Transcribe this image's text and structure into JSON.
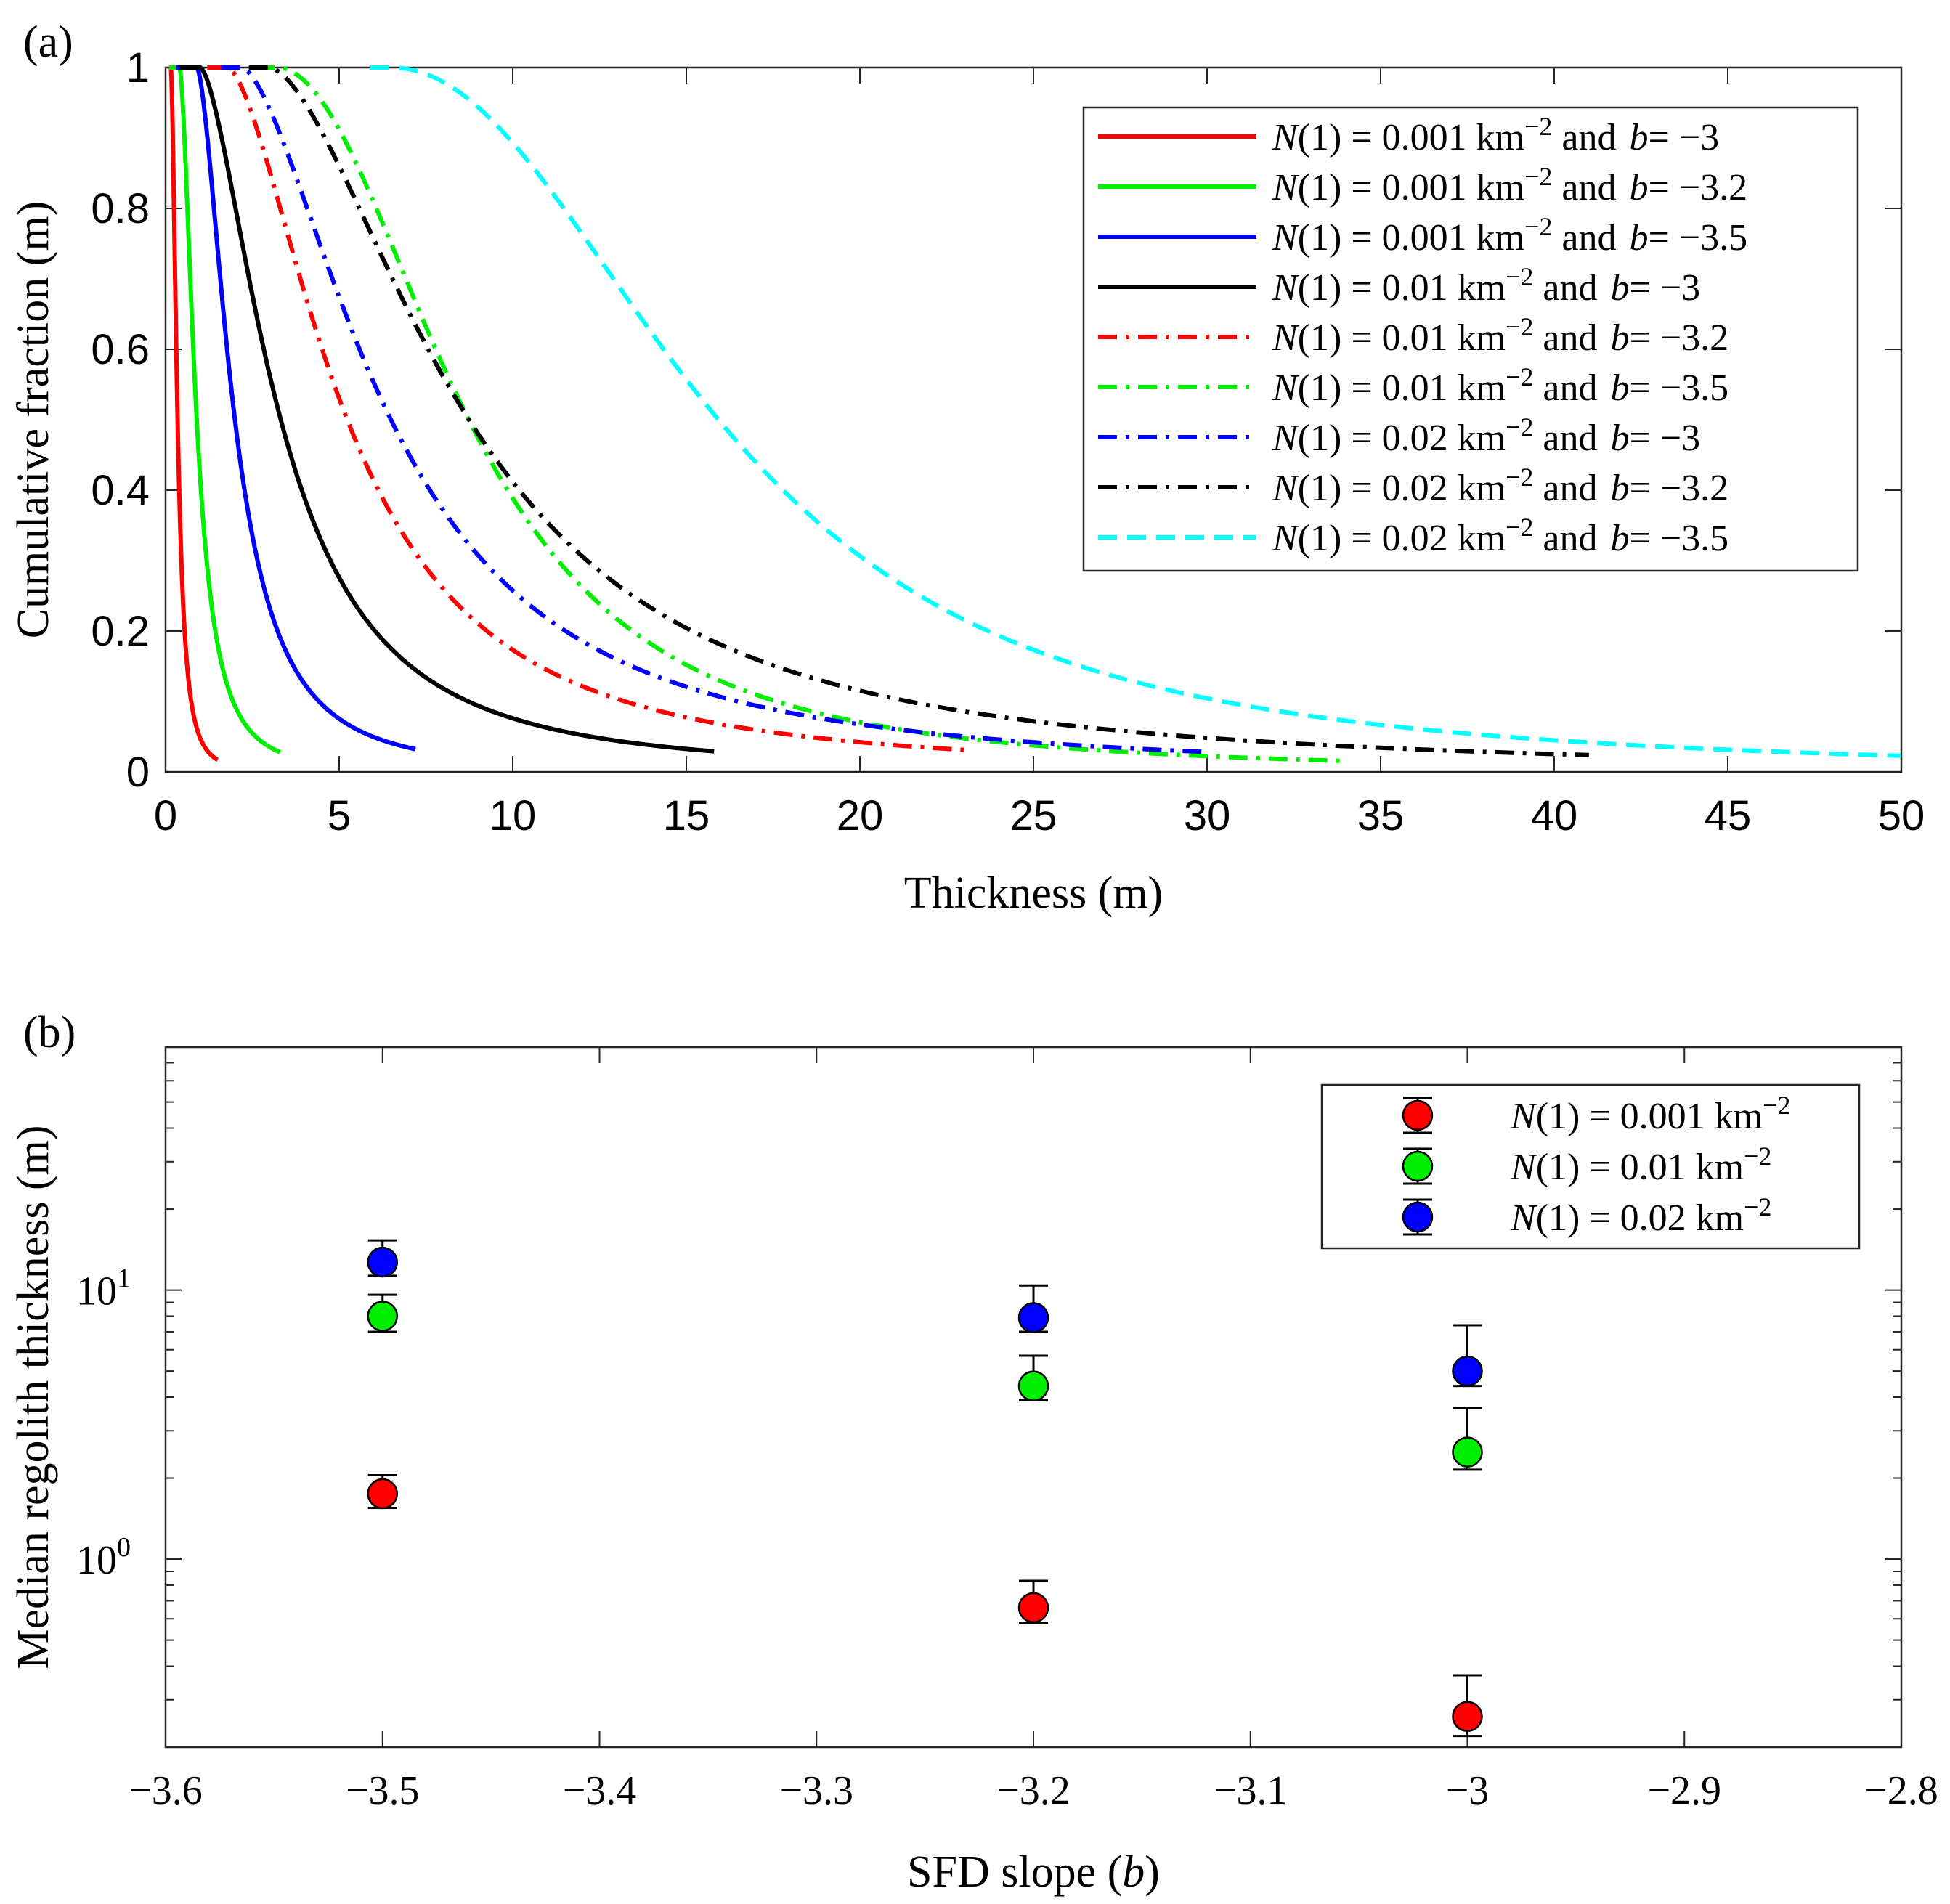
{
  "chart_data": [
    {
      "panel_label": "(a)",
      "type": "line",
      "xlabel": "Thickness (m)",
      "ylabel": "Cumulative fraction (m)",
      "xlim": [
        0,
        50
      ],
      "ylim": [
        0,
        1
      ],
      "xticks": [
        "0",
        "5",
        "10",
        "15",
        "20",
        "25",
        "30",
        "35",
        "40",
        "45",
        "50"
      ],
      "yticks": [
        "0",
        "0.2",
        "0.4",
        "0.6",
        "0.8",
        "1"
      ],
      "legend_position": "top-right",
      "series": [
        {
          "name_n": "0.001",
          "name_b": "−3",
          "color": "#ff0000",
          "style": "solid",
          "onset": 0.15,
          "scale": 0.12,
          "shape": 1.7,
          "end": 1.5
        },
        {
          "name_n": "0.001",
          "name_b": "−3.2",
          "color": "#00ee00",
          "style": "solid",
          "onset": 0.4,
          "scale": 0.3,
          "shape": 1.65,
          "end": 3.3
        },
        {
          "name_n": "0.001",
          "name_b": "−3.5",
          "color": "#0000ff",
          "style": "solid",
          "onset": 0.9,
          "scale": 0.65,
          "shape": 1.6,
          "end": 7.2
        },
        {
          "name_n": "0.01",
          "name_b": "−3",
          "color": "#000000",
          "style": "solid",
          "onset": 1.0,
          "scale": 1.35,
          "shape": 1.55,
          "end": 15.8
        },
        {
          "name_n": "0.01",
          "name_b": "−3.2",
          "color": "#ff0000",
          "style": "dashdot",
          "onset": 1.8,
          "scale": 2.0,
          "shape": 1.55,
          "end": 23.0
        },
        {
          "name_n": "0.01",
          "name_b": "−3.5",
          "color": "#00ee00",
          "style": "dashdot",
          "onset": 3.2,
          "scale": 3.6,
          "shape": 1.95,
          "end": 34.0
        },
        {
          "name_n": "0.02",
          "name_b": "−3",
          "color": "#0000ff",
          "style": "dashdot",
          "onset": 2.2,
          "scale": 2.5,
          "shape": 1.55,
          "end": 30.0
        },
        {
          "name_n": "0.02",
          "name_b": "−3.2",
          "color": "#000000",
          "style": "dashdot",
          "onset": 3.0,
          "scale": 3.4,
          "shape": 1.6,
          "end": 41.0
        },
        {
          "name_n": "0.02",
          "name_b": "−3.5",
          "color": "#00ffff",
          "style": "dashed",
          "onset": 6.5,
          "scale": 6.2,
          "shape": 2.0,
          "end": 50.0
        }
      ],
      "legend_prefix": "N(1) = ",
      "legend_unit": "km",
      "legend_exp": "−2",
      "legend_and": "and",
      "legend_b": "b= "
    },
    {
      "panel_label": "(b)",
      "type": "scatter",
      "xlabel_prefix": "SFD slope (",
      "xlabel_var": "b",
      "xlabel_suffix": ")",
      "ylabel": "Median regolith thickness (m)",
      "xlim": [
        -3.6,
        -2.8
      ],
      "ylog": true,
      "ylim": [
        0.2,
        80
      ],
      "xticks": [
        "−3.6",
        "−3.5",
        "−3.4",
        "−3.3",
        "−3.2",
        "−3.1",
        "−3",
        "−2.9",
        "−2.8"
      ],
      "xtick_values": [
        -3.6,
        -3.5,
        -3.4,
        -3.3,
        -3.2,
        -3.1,
        -3.0,
        -2.9,
        -2.8
      ],
      "yticks": [
        {
          "base": "10",
          "exp": "0",
          "value": 1
        },
        {
          "base": "10",
          "exp": "1",
          "value": 10
        }
      ],
      "legend_position": "top-right",
      "series": [
        {
          "name_n": "0.001",
          "color": "#ff0000",
          "points": [
            {
              "x": -3.5,
              "y": 1.75,
              "lo": 1.55,
              "hi": 2.05
            },
            {
              "x": -3.2,
              "y": 0.66,
              "lo": 0.58,
              "hi": 0.83
            },
            {
              "x": -3.0,
              "y": 0.26,
              "lo": 0.22,
              "hi": 0.37
            }
          ]
        },
        {
          "name_n": "0.01",
          "color": "#00ee00",
          "points": [
            {
              "x": -3.5,
              "y": 8.0,
              "lo": 7.0,
              "hi": 9.6
            },
            {
              "x": -3.2,
              "y": 4.4,
              "lo": 3.9,
              "hi": 5.7
            },
            {
              "x": -3.0,
              "y": 2.5,
              "lo": 2.15,
              "hi": 3.65
            }
          ]
        },
        {
          "name_n": "0.02",
          "color": "#0000ff",
          "points": [
            {
              "x": -3.5,
              "y": 12.7,
              "lo": 11.3,
              "hi": 15.3
            },
            {
              "x": -3.2,
              "y": 7.9,
              "lo": 7.0,
              "hi": 10.4
            },
            {
              "x": -3.0,
              "y": 5.0,
              "lo": 4.4,
              "hi": 7.4
            }
          ]
        }
      ],
      "legend_prefix": "N(1) = ",
      "legend_unit": "km",
      "legend_exp": "−2"
    }
  ]
}
